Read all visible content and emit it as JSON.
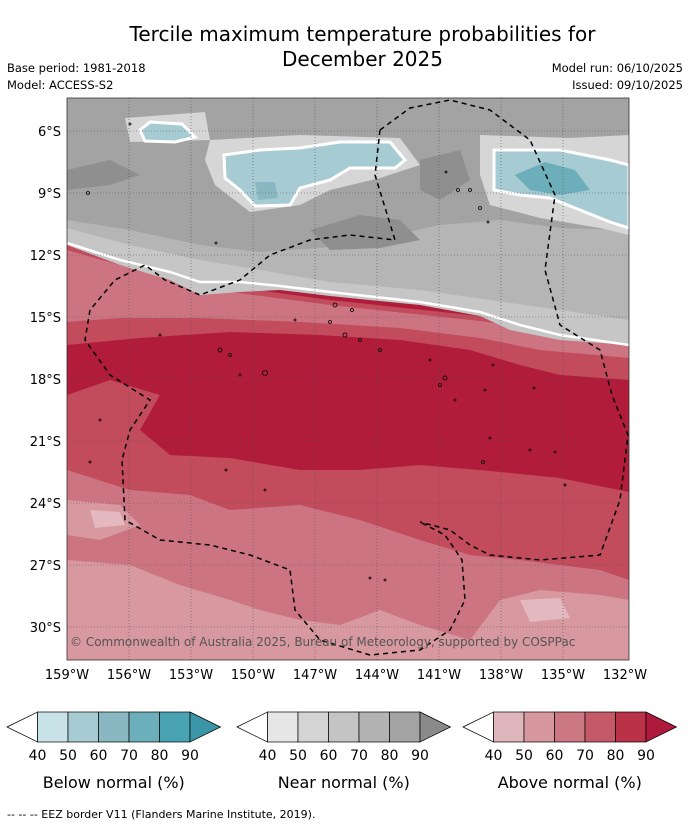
{
  "title_line1": "Tercile maximum temperature probabilities for",
  "title_line2": "December 2025",
  "base_period": "Base period: 1981-2018",
  "model": "Model: ACCESS-S2",
  "model_run": "Model run: 06/10/2025",
  "issued": "Issued: 09/10/2025",
  "lat_labels": [
    "6°S",
    "9°S",
    "12°S",
    "15°S",
    "18°S",
    "21°S",
    "24°S",
    "27°S",
    "30°S"
  ],
  "lon_labels": [
    "159°W",
    "156°W",
    "153°W",
    "150°W",
    "147°W",
    "144°W",
    "141°W",
    "138°W",
    "135°W",
    "132°W"
  ],
  "copyright": "© Commonwealth of Australia 2025, Bureau of Meteorology, supported by COSPPac",
  "colorbars": [
    {
      "label": "Below normal (%)",
      "ticks": [
        "40",
        "50",
        "60",
        "70",
        "80",
        "90"
      ],
      "colors": [
        "#ffffff",
        "#c9e2e8",
        "#a6cbd3",
        "#89b8c3",
        "#6caeb9",
        "#4aa3b3",
        "#3a95a6"
      ]
    },
    {
      "label": "Near normal (%)",
      "ticks": [
        "40",
        "50",
        "60",
        "70",
        "80",
        "90"
      ],
      "colors": [
        "#ffffff",
        "#e6e6e6",
        "#d4d4d4",
        "#c4c4c4",
        "#b3b3b3",
        "#a3a3a3",
        "#8a8a8a"
      ]
    },
    {
      "label": "Above normal (%)",
      "ticks": [
        "40",
        "50",
        "60",
        "70",
        "80",
        "90"
      ],
      "colors": [
        "#ffffff",
        "#e0b6bd",
        "#d6979f",
        "#cc7883",
        "#c45a68",
        "#b93247",
        "#ad1a3c"
      ]
    }
  ],
  "footer": "--  --  -- EEZ border V11 (Flanders Marine Institute, 2019)."
}
